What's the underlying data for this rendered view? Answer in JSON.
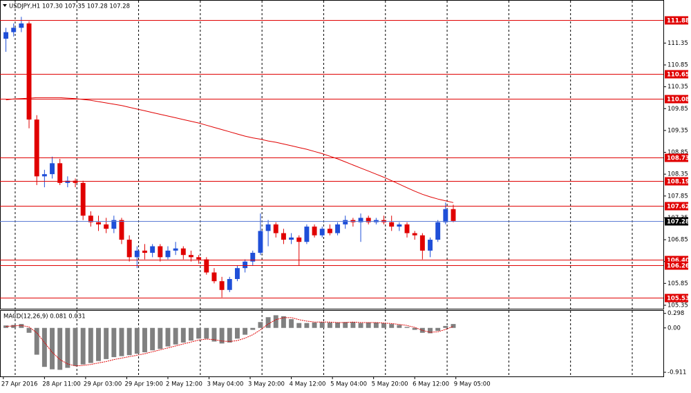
{
  "chart_data": [
    {
      "type": "candlestick",
      "title": "USDJPY,H1  107.30 107.35 107.28 107.28",
      "x": [
        1,
        4,
        7,
        10,
        13,
        16,
        19,
        22,
        25,
        28,
        31,
        34,
        37,
        40,
        43,
        46,
        49,
        52,
        55,
        58,
        61,
        64,
        67,
        70,
        73,
        76,
        79,
        82,
        85,
        88,
        91,
        94,
        97,
        100,
        103,
        106,
        109,
        112,
        115,
        118,
        121,
        124,
        127,
        130,
        133,
        136,
        139,
        142,
        145,
        148,
        151,
        154,
        157,
        160,
        163,
        166,
        169,
        172,
        175
      ],
      "open": [
        111.45,
        111.6,
        111.7,
        111.8,
        109.6,
        108.3,
        108.35,
        108.6,
        108.15,
        108.2,
        108.15,
        107.4,
        107.25,
        107.2,
        107.1,
        107.3,
        106.85,
        106.45,
        106.6,
        106.55,
        106.7,
        106.45,
        106.6,
        106.65,
        106.5,
        106.45,
        106.4,
        106.1,
        105.9,
        105.7,
        105.95,
        106.2,
        106.35,
        106.55,
        107.05,
        107.2,
        107.0,
        106.85,
        106.9,
        106.8,
        107.15,
        106.95,
        107.1,
        107.0,
        107.2,
        107.3,
        107.25,
        107.35,
        107.25,
        107.3,
        107.25,
        107.15,
        107.2,
        107.0,
        106.95,
        106.6,
        106.85,
        107.25,
        107.55
      ],
      "high": [
        111.7,
        111.8,
        111.95,
        111.85,
        109.7,
        108.45,
        108.75,
        108.7,
        108.3,
        108.25,
        108.2,
        107.5,
        107.4,
        107.35,
        107.4,
        107.35,
        106.95,
        106.7,
        106.75,
        106.75,
        106.75,
        106.7,
        106.8,
        106.7,
        106.6,
        106.5,
        106.45,
        106.2,
        106.0,
        106.0,
        106.25,
        106.4,
        106.6,
        107.45,
        107.3,
        107.25,
        107.1,
        107.0,
        106.95,
        107.2,
        107.2,
        107.15,
        107.2,
        107.25,
        107.4,
        107.35,
        107.45,
        107.4,
        107.35,
        107.4,
        107.4,
        107.25,
        107.25,
        107.05,
        107.0,
        106.9,
        107.3,
        107.7,
        107.65
      ],
      "low": [
        111.15,
        111.5,
        111.6,
        109.4,
        108.1,
        108.05,
        108.25,
        108.1,
        108.05,
        108.05,
        107.3,
        107.15,
        107.05,
        107.0,
        107.0,
        106.75,
        106.35,
        106.2,
        106.4,
        106.45,
        106.35,
        106.4,
        106.5,
        106.4,
        106.35,
        106.3,
        106.05,
        105.85,
        105.53,
        105.65,
        105.9,
        106.1,
        106.25,
        106.5,
        106.7,
        106.9,
        106.75,
        106.75,
        106.25,
        106.75,
        106.9,
        106.9,
        106.95,
        106.95,
        107.1,
        107.15,
        106.8,
        107.2,
        107.2,
        107.2,
        107.05,
        107.05,
        106.9,
        106.85,
        106.4,
        106.45,
        106.8,
        107.2,
        107.25
      ],
      "close": [
        111.6,
        111.7,
        111.8,
        109.6,
        108.3,
        108.35,
        108.6,
        108.15,
        108.2,
        108.15,
        107.4,
        107.25,
        107.2,
        107.1,
        107.3,
        106.85,
        106.45,
        106.6,
        106.55,
        106.7,
        106.45,
        106.6,
        106.65,
        106.5,
        106.45,
        106.4,
        106.1,
        105.9,
        105.7,
        105.95,
        106.2,
        106.35,
        106.55,
        107.05,
        107.2,
        107.0,
        106.85,
        106.9,
        106.8,
        107.15,
        106.95,
        107.1,
        107.0,
        107.2,
        107.3,
        107.25,
        107.35,
        107.25,
        107.3,
        107.25,
        107.15,
        107.2,
        107.0,
        106.95,
        106.6,
        106.85,
        107.25,
        107.55,
        107.28
      ],
      "up_color": "#1f4fd8",
      "down_color": "#e00000",
      "overlays": [
        {
          "color": "#e00000",
          "values": [
            110.05,
            110.07,
            110.08,
            110.09,
            110.1,
            110.1,
            110.1,
            110.1,
            110.09,
            110.08,
            110.06,
            110.04,
            110.01,
            109.98,
            109.95,
            109.92,
            109.88,
            109.84,
            109.8,
            109.76,
            109.72,
            109.68,
            109.64,
            109.6,
            109.56,
            109.52,
            109.47,
            109.42,
            109.37,
            109.32,
            109.27,
            109.22,
            109.18,
            109.15,
            109.11,
            109.08,
            109.04,
            109.0,
            108.96,
            108.92,
            108.87,
            108.82,
            108.76,
            108.7,
            108.63,
            108.56,
            108.49,
            108.42,
            108.35,
            108.28,
            108.2,
            108.12,
            108.04,
            107.96,
            107.89,
            107.83,
            107.78,
            107.74,
            107.7
          ]
        }
      ],
      "levels": [
        {
          "value": 111.88,
          "label": "111.88"
        },
        {
          "value": 110.65,
          "label": "110.65"
        },
        {
          "value": 110.08,
          "label": "110.08"
        },
        {
          "value": 108.73,
          "label": "108.73"
        },
        {
          "value": 108.19,
          "label": "108.19"
        },
        {
          "value": 107.62,
          "label": "107.62"
        },
        {
          "value": 106.4,
          "label": "106.40"
        },
        {
          "value": 106.26,
          "label": "106.26"
        },
        {
          "value": 105.53,
          "label": "105.53"
        }
      ],
      "level_color": "#e00000",
      "current_price": {
        "value": 107.28,
        "label": "107.28"
      },
      "current_color": "#5b7bd5",
      "xlim": [
        -1.3,
        256.7
      ],
      "ylim": [
        105.27,
        112.32
      ],
      "yticks": [
        111.35,
        110.85,
        110.35,
        109.85,
        109.35,
        108.85,
        108.35,
        107.85,
        107.35,
        106.85,
        106.35,
        105.85,
        105.35
      ]
    },
    {
      "type": "macd",
      "title": "MACD(12,26,9) 0.081 0.031",
      "x": [
        1,
        4,
        7,
        10,
        13,
        16,
        19,
        22,
        25,
        28,
        31,
        34,
        37,
        40,
        43,
        46,
        49,
        52,
        55,
        58,
        61,
        64,
        67,
        70,
        73,
        76,
        79,
        82,
        85,
        88,
        91,
        94,
        97,
        100,
        103,
        106,
        109,
        112,
        115,
        118,
        121,
        124,
        127,
        130,
        133,
        136,
        139,
        142,
        145,
        148,
        151,
        154,
        157,
        160,
        163,
        166,
        169,
        172,
        175
      ],
      "histogram": [
        0.05,
        0.06,
        0.08,
        -0.1,
        -0.55,
        -0.8,
        -0.85,
        -0.86,
        -0.82,
        -0.78,
        -0.75,
        -0.72,
        -0.68,
        -0.64,
        -0.6,
        -0.58,
        -0.56,
        -0.53,
        -0.5,
        -0.46,
        -0.43,
        -0.38,
        -0.34,
        -0.3,
        -0.26,
        -0.22,
        -0.22,
        -0.28,
        -0.32,
        -0.3,
        -0.22,
        -0.14,
        -0.04,
        0.12,
        0.22,
        0.26,
        0.24,
        0.18,
        0.1,
        0.1,
        0.11,
        0.12,
        0.11,
        0.11,
        0.12,
        0.12,
        0.1,
        0.11,
        0.11,
        0.1,
        0.08,
        0.06,
        0.02,
        -0.04,
        -0.1,
        -0.11,
        -0.06,
        0.04,
        0.08
      ],
      "signal": [
        0.03,
        0.04,
        0.05,
        0.02,
        -0.1,
        -0.3,
        -0.5,
        -0.65,
        -0.74,
        -0.78,
        -0.77,
        -0.75,
        -0.72,
        -0.69,
        -0.65,
        -0.62,
        -0.59,
        -0.56,
        -0.53,
        -0.49,
        -0.45,
        -0.41,
        -0.37,
        -0.33,
        -0.29,
        -0.25,
        -0.23,
        -0.24,
        -0.27,
        -0.28,
        -0.26,
        -0.21,
        -0.14,
        -0.04,
        0.08,
        0.17,
        0.21,
        0.21,
        0.17,
        0.14,
        0.12,
        0.12,
        0.12,
        0.11,
        0.11,
        0.12,
        0.11,
        0.11,
        0.11,
        0.1,
        0.09,
        0.07,
        0.05,
        0.01,
        -0.05,
        -0.09,
        -0.08,
        -0.03,
        0.03
      ],
      "histogram_color": "#808080",
      "signal_color": "#e00000",
      "xlim": [
        -1.3,
        256.7
      ],
      "ylim": [
        -0.996,
        0.351
      ],
      "yticks": [
        0.298,
        {
          "value": 0,
          "label": "0.00"
        },
        -0.911
      ],
      "xticks": [
        {
          "value": 0,
          "label": "27 Apr 2016"
        },
        {
          "value": 16,
          "label": "28 Apr 11:00"
        },
        {
          "value": 32,
          "label": "29 Apr 03:00"
        },
        {
          "value": 48,
          "label": "29 Apr 19:00"
        },
        {
          "value": 64,
          "label": "2 May 12:00"
        },
        {
          "value": 80,
          "label": "3 May 04:00"
        },
        {
          "value": 96,
          "label": "3 May 20:00"
        },
        {
          "value": 112,
          "label": "4 May 12:00"
        },
        {
          "value": 128,
          "label": "5 May 04:00"
        },
        {
          "value": 144,
          "label": "5 May 20:00"
        },
        {
          "value": 160,
          "label": "6 May 12:00"
        },
        {
          "value": 176,
          "label": "9 May 05:00"
        }
      ]
    }
  ]
}
